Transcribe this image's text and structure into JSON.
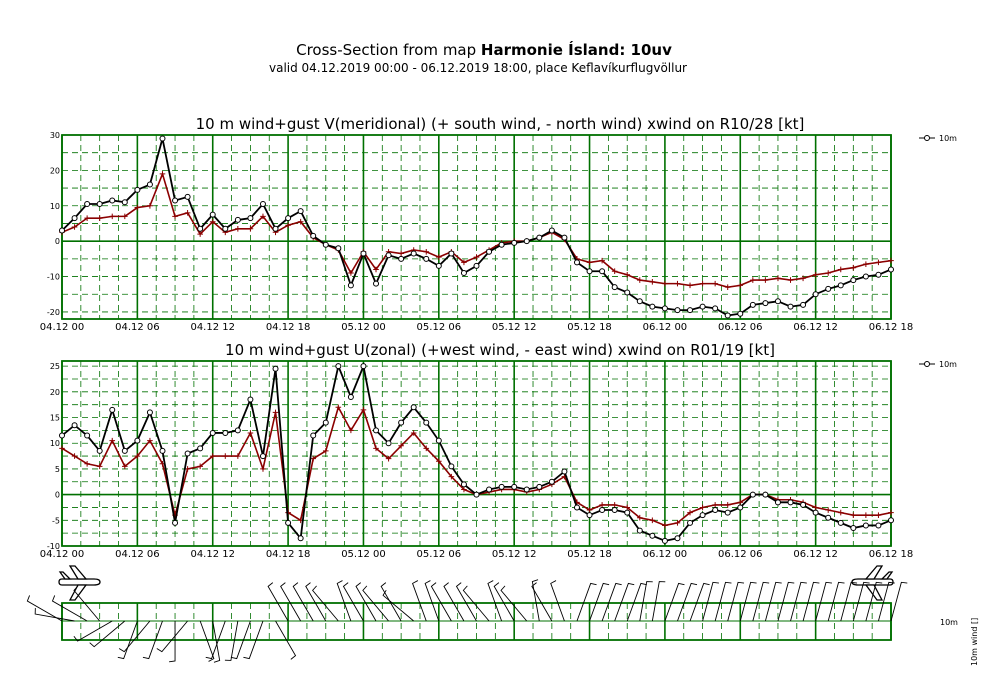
{
  "header": {
    "title_prefix": "Cross-Section from map ",
    "title_bold": "Harmonie Ísland: 10uv",
    "subtitle": "valid 04.12.2019 00:00 - 06.12.2019 18:00, place Keflavíkurflugvöllur"
  },
  "colors": {
    "grid": "#007000",
    "series_10m": "#000000",
    "series_gust": "#8b0000"
  },
  "chart_data": [
    {
      "type": "line",
      "title": "10 m wind+gust V(meridional) (+ south wind, - north wind) xwind on R10/28 [kt]",
      "legend": {
        "label": "10m",
        "placement": "top-right"
      },
      "x_tick_labels": [
        "04.12 00",
        "04.12 06",
        "04.12 12",
        "04.12 18",
        "05.12 00",
        "05.12 06",
        "05.12 12",
        "05.12 18",
        "06.12 00",
        "06.12 06",
        "06.12 12",
        "06.12 18"
      ],
      "x_range_hours": [
        0,
        66
      ],
      "ylim": [
        -22,
        30
      ],
      "yticks": [
        30,
        20,
        10,
        0,
        -10,
        -20
      ],
      "grid": true,
      "series": [
        {
          "role": "10m",
          "values": [
            3,
            6.5,
            10.5,
            10.5,
            11.5,
            11,
            14.5,
            16,
            29,
            11.5,
            12.5,
            3.5,
            7.5,
            3.5,
            6,
            6.5,
            10.5,
            3.5,
            6.5,
            8.5,
            1.5,
            -1,
            -2,
            -12.5,
            -3.5,
            -12,
            -4,
            -5,
            -3.5,
            -5,
            -7,
            -3.5,
            -9,
            -7,
            -3,
            -1,
            -0.5,
            0,
            1,
            3,
            1,
            -6,
            -8.5,
            -8.5,
            -13,
            -14.5,
            -17,
            -18.5,
            -19,
            -19.5,
            -19.5,
            -18.5,
            -19,
            -21,
            -20.5,
            -18,
            -17.5,
            -17,
            -18.5,
            -18,
            -15,
            -13.5,
            -12.5,
            -11,
            -10,
            -9.5,
            -8
          ]
        },
        {
          "role": "gust",
          "values": [
            2.5,
            4,
            6.5,
            6.5,
            7,
            7,
            9.5,
            10,
            19,
            7,
            8,
            2,
            5.5,
            2.5,
            3.5,
            3.5,
            7,
            2.5,
            4.5,
            5.5,
            1,
            -1,
            -2.5,
            -9,
            -3,
            -8,
            -3,
            -3.5,
            -2.5,
            -3,
            -4.5,
            -3,
            -6,
            -4.5,
            -2.5,
            -0.5,
            0,
            0,
            1,
            2.5,
            0.5,
            -5,
            -6,
            -5.5,
            -8.5,
            -9.5,
            -11,
            -11.5,
            -12,
            -12,
            -12.5,
            -12,
            -12,
            -13,
            -12.5,
            -11,
            -11,
            -10.5,
            -11,
            -10.5,
            -9.5,
            -9,
            -8,
            -7.5,
            -6.5,
            -6,
            -5.5
          ]
        }
      ]
    },
    {
      "type": "line",
      "title": "10 m wind+gust U(zonal) (+west wind, - east wind) xwind on R01/19 [kt]",
      "legend": {
        "label": "10m",
        "placement": "top-right"
      },
      "x_tick_labels": [
        "04.12 00",
        "04.12 06",
        "04.12 12",
        "04.12 18",
        "05.12 00",
        "05.12 06",
        "05.12 12",
        "05.12 18",
        "06.12 00",
        "06.12 06",
        "06.12 12",
        "06.12 18"
      ],
      "x_range_hours": [
        0,
        66
      ],
      "ylim": [
        -10,
        26
      ],
      "yticks": [
        25,
        20,
        15,
        10,
        5,
        0,
        -5,
        -10
      ],
      "grid": true,
      "series": [
        {
          "role": "10m",
          "values": [
            11.5,
            13.5,
            11.5,
            8.5,
            16.5,
            8.5,
            10.5,
            16,
            8.5,
            -5.5,
            8,
            9,
            12,
            12,
            12.5,
            18.5,
            7.5,
            24.5,
            -5.5,
            -8.5,
            11.5,
            14,
            25,
            19,
            25,
            12.5,
            10,
            14,
            17,
            14,
            10.5,
            5.5,
            2,
            0,
            1,
            1.5,
            1.5,
            1,
            1.5,
            2.5,
            4.5,
            -2.5,
            -4,
            -3,
            -3,
            -3.5,
            -7,
            -8,
            -9,
            -8.5,
            -5.5,
            -4,
            -3,
            -3.5,
            -2.5,
            0,
            0,
            -1.5,
            -1.5,
            -2,
            -3.5,
            -4.5,
            -5.5,
            -6.5,
            -6,
            -6,
            -5
          ]
        },
        {
          "role": "gust",
          "values": [
            9,
            7.5,
            6,
            5.5,
            10.5,
            5.5,
            7.5,
            10.5,
            6,
            -4,
            5,
            5.5,
            7.5,
            7.5,
            7.5,
            12,
            5,
            16,
            -3.5,
            -5,
            7,
            8.5,
            17,
            12.5,
            16.5,
            9,
            7,
            9.5,
            12,
            9,
            6.5,
            3.5,
            1,
            0,
            0.5,
            1,
            1,
            0.5,
            1,
            2,
            3.5,
            -1.5,
            -3,
            -2,
            -2,
            -2.5,
            -4.5,
            -5,
            -6,
            -5.5,
            -3.5,
            -2.5,
            -2,
            -2,
            -1.5,
            0,
            0,
            -1,
            -1,
            -1.5,
            -2.5,
            -3,
            -3.5,
            -4,
            -4,
            -4,
            -3.5
          ]
        }
      ]
    },
    {
      "type": "wind-barbs",
      "row_label": "10m",
      "side_label": "10m wind []",
      "direction_deg_from": [
        300,
        280,
        300,
        320,
        240,
        230,
        200,
        220,
        200,
        180,
        220,
        160,
        170,
        200,
        190,
        200,
        200,
        150,
        330,
        330,
        330,
        330,
        320,
        340,
        330,
        330,
        320,
        330,
        310,
        340,
        340,
        330,
        330,
        330,
        320,
        340,
        330,
        320,
        350,
        330,
        340,
        20,
        20,
        20,
        20,
        20,
        10,
        10,
        20,
        20,
        20,
        15,
        15,
        15,
        15,
        15,
        15,
        15,
        15,
        15,
        15,
        15,
        15,
        15,
        15,
        15,
        15
      ]
    }
  ]
}
